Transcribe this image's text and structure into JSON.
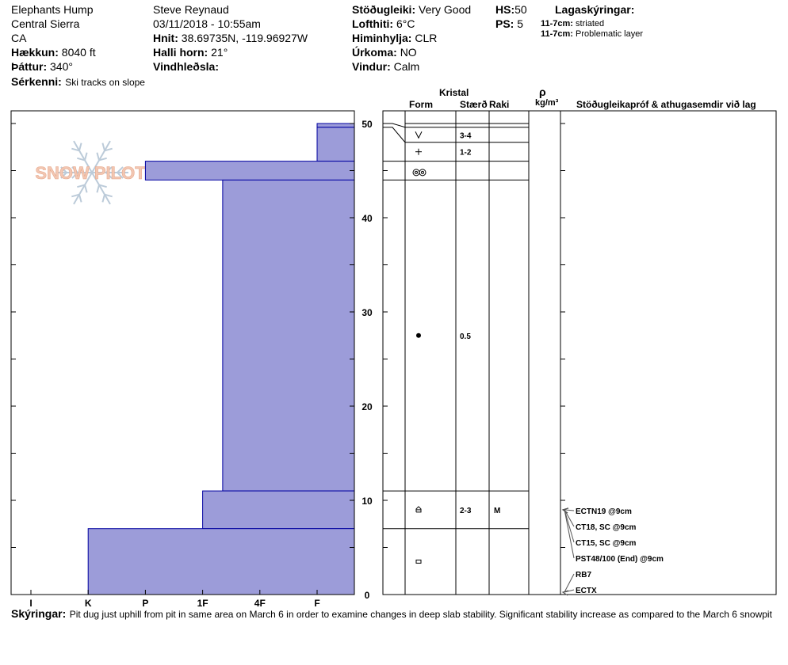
{
  "header": {
    "location": "Elephants Hump",
    "range": "Central Sierra",
    "state": "CA",
    "elevation": {
      "label": "Hækkun:",
      "value": "8040 ft"
    },
    "aspect": {
      "label": "Þáttur:",
      "value": "340°"
    },
    "features": {
      "label": "Sérkenni:",
      "value": "Ski tracks on slope"
    },
    "observer": "Steve Reynaud",
    "datetime": "03/11/2018 - 10:55am",
    "coords": {
      "label": "Hnit:",
      "value": "38.69735N, -119.96927W"
    },
    "slope_angle": {
      "label": "Halli horn:",
      "value": "21°"
    },
    "wind_loading": {
      "label": "Vindhleðsla:",
      "value": ""
    },
    "stability": {
      "label": "Stöðugleiki:",
      "value": "Very Good"
    },
    "air_temp": {
      "label": "Lofthiti:",
      "value": "6°C"
    },
    "sky": {
      "label": "Himinhylja:",
      "value": "CLR"
    },
    "precip": {
      "label": "Úrkoma:",
      "value": "NO"
    },
    "wind": {
      "label": "Vindur:",
      "value": "Calm"
    },
    "hs": {
      "label": "HS:",
      "value": "50"
    },
    "ps": {
      "label": "PS:",
      "value": "5"
    },
    "layer_notes_title": "Lagaskýringar:",
    "layer_notes": [
      {
        "range": "11-7cm:",
        "text": "striated"
      },
      {
        "range": "11-7cm:",
        "text": "Problematic layer"
      }
    ]
  },
  "columns": {
    "crystal": "Kristal",
    "form": "Form",
    "size": "Stærð",
    "moisture": "Raki",
    "density_symbol": "ρ",
    "density_unit": "kg/m³",
    "tests": "Stöðugleikapróf & athugasemdir við lag"
  },
  "footer": {
    "label": "Skýringar:",
    "text": "Pit dug just uphill from pit in same area on March 6 in order to examine changes in deep slab stability. Significant stability increase as compared to the March 6 snowpit"
  },
  "watermark": "SNOW PILOT",
  "colors": {
    "fill": "#9c9cd9",
    "stroke": "#0000a0",
    "watermark": "#f2c7b3",
    "flake": "#bccbd9"
  },
  "chart_data": {
    "type": "bar",
    "orientation": "horizontal",
    "description_axis": "depth in cm (0 at bottom)",
    "y_ticks": [
      0,
      10,
      20,
      30,
      40,
      50
    ],
    "ylim": [
      0,
      50
    ],
    "hardness_scale": [
      "I",
      "K",
      "P",
      "1F",
      "4F",
      "F"
    ],
    "layers": [
      {
        "top": 50,
        "bottom": 49.6,
        "hardness": "F",
        "hardness_value": 6
      },
      {
        "top": 49.6,
        "bottom": 46,
        "hardness": "F",
        "hardness_value": 6
      },
      {
        "top": 46,
        "bottom": 44,
        "hardness": "P",
        "hardness_value": 3
      },
      {
        "top": 44,
        "bottom": 11,
        "hardness": "4F+",
        "hardness_value": 4.35
      },
      {
        "top": 11,
        "bottom": 7,
        "hardness": "4F",
        "hardness_value": 4
      },
      {
        "top": 7,
        "bottom": 0,
        "hardness": "K",
        "hardness_value": 2
      }
    ],
    "layer_lines": [
      50,
      49.6,
      48,
      46,
      44,
      11,
      7
    ],
    "crystals": [
      {
        "depth": 48.8,
        "form": "surface-hoar",
        "size": "3-4",
        "moisture": ""
      },
      {
        "depth": 47,
        "form": "precip",
        "size": "1-2",
        "moisture": ""
      },
      {
        "depth": 44.8,
        "form": "melt-freeze",
        "size": "",
        "moisture": ""
      },
      {
        "depth": 27.5,
        "form": "rounded",
        "size": "0.5",
        "moisture": ""
      },
      {
        "depth": 9,
        "form": "depth-hoar",
        "size": "2-3",
        "moisture": "M"
      },
      {
        "depth": 3.5,
        "form": "faceted",
        "size": "",
        "moisture": ""
      }
    ],
    "tests": [
      {
        "label": "ECTN19 @9cm",
        "depth": 9
      },
      {
        "label": "CT18, SC @9cm",
        "depth": 9
      },
      {
        "label": "CT15, SC @9cm",
        "depth": 9
      },
      {
        "label": "PST48/100 (End) @9cm",
        "depth": 9
      },
      {
        "label": "RB7",
        "depth": 0
      },
      {
        "label": "ECTX",
        "depth": 0
      }
    ]
  }
}
